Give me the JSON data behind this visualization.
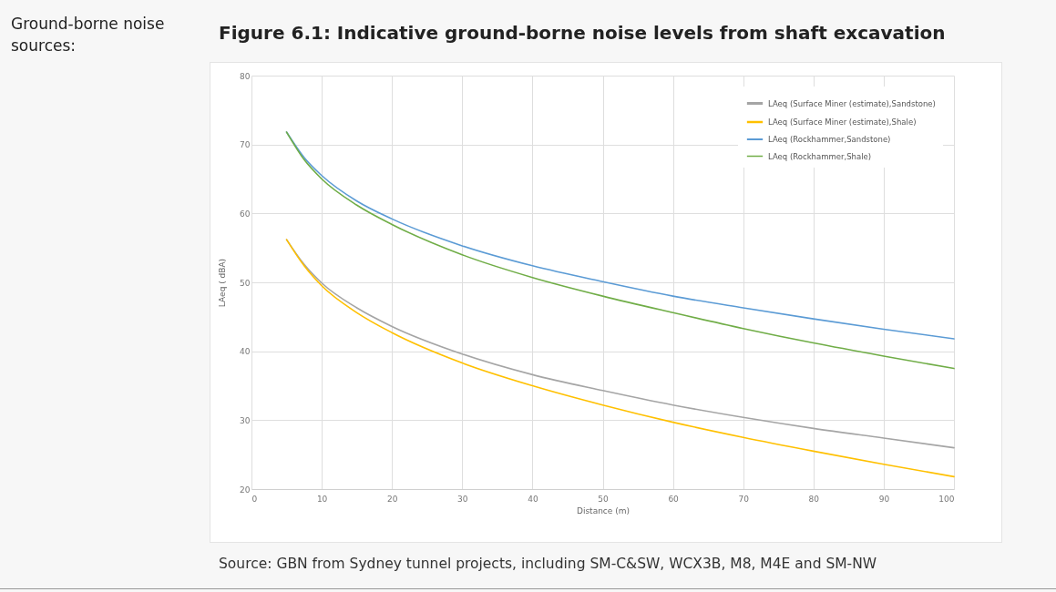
{
  "chart_data": {
    "type": "line",
    "title": "Figure 6.1: Indicative ground-borne noise levels from shaft excavation",
    "xlabel": "Distance (m)",
    "ylabel": "LAeq ( dBA)",
    "annotations": [
      "Ground-borne noise sources:",
      "Source: GBN from Sydney tunnel projects, including SM-C&SW, WCX3B, M8, M4E and SM-NW"
    ],
    "x": [
      5,
      7.5,
      10,
      15,
      20,
      30,
      40,
      50,
      60,
      70,
      80,
      90,
      100
    ],
    "series": [
      {
        "name": "LAeq (Surface Miner (estimate),Sandstone)",
        "color": "#a5a5a5",
        "values": [
          56.2,
          52.6,
          49.9,
          46.3,
          43.6,
          39.6,
          36.6,
          34.3,
          32.2,
          30.4,
          28.8,
          27.4,
          26.0
        ]
      },
      {
        "name": "LAeq (Surface Miner (estimate),Shale)",
        "color": "#ffc000",
        "values": [
          56.2,
          52.4,
          49.5,
          45.6,
          42.7,
          38.3,
          35.0,
          32.2,
          29.7,
          27.5,
          25.5,
          23.6,
          21.8
        ]
      },
      {
        "name": "LAeq (Rockhammer,Sandstone)",
        "color": "#5b9bd5",
        "values": [
          71.8,
          68.1,
          65.5,
          61.8,
          59.2,
          55.3,
          52.4,
          50.1,
          48.0,
          46.3,
          44.7,
          43.2,
          41.8
        ]
      },
      {
        "name": "LAeq (Rockhammer,Shale)",
        "color": "#70ad47",
        "values": [
          71.8,
          67.8,
          65.0,
          61.2,
          58.4,
          54.0,
          50.7,
          48.0,
          45.6,
          43.3,
          41.2,
          39.3,
          37.5
        ]
      }
    ],
    "xlim": [
      0,
      100
    ],
    "xticks": [
      0,
      10,
      20,
      30,
      40,
      50,
      60,
      70,
      80,
      90,
      100
    ],
    "ylim": [
      20,
      80
    ],
    "yticks": [
      20,
      30,
      40,
      50,
      60,
      70,
      80
    ],
    "grid": true,
    "legend": "top right",
    "marker": "none",
    "line_style": "solid"
  }
}
